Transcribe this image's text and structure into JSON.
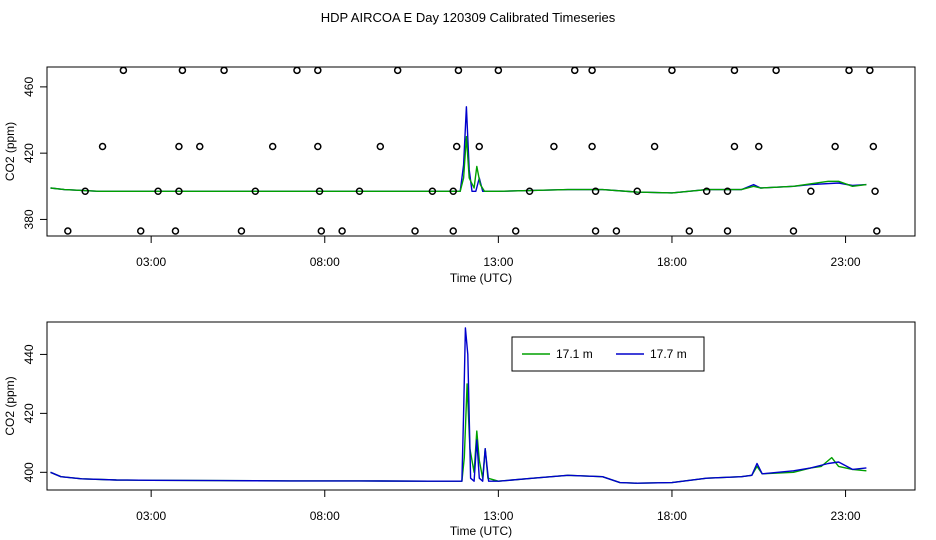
{
  "page_title": "HDP AIRCOA E  Day 120309  Calibrated Timeseries",
  "colors": {
    "series_17_1": "#00a000",
    "series_17_7": "#0000cc",
    "axis": "#000000"
  },
  "chart_data": [
    {
      "type": "scatter+line",
      "title": "",
      "xlabel": "Time (UTC)",
      "ylabel": "CO2 (ppm)",
      "x_unit": "hour UTC",
      "xlim": [
        0.0,
        25.0
      ],
      "ylim": [
        370,
        472
      ],
      "x_ticks": [
        {
          "value": 3,
          "label": "03:00"
        },
        {
          "value": 8,
          "label": "08:00"
        },
        {
          "value": 13,
          "label": "13:00"
        },
        {
          "value": 18,
          "label": "18:00"
        },
        {
          "value": 23,
          "label": "23:00"
        }
      ],
      "y_ticks": [
        {
          "value": 380,
          "label": "380"
        },
        {
          "value": 420,
          "label": "420"
        },
        {
          "value": 460,
          "label": "460"
        }
      ],
      "points_description_source": "calibration markers (open circles)",
      "points": [
        {
          "x": 2.2,
          "y": 470
        },
        {
          "x": 3.9,
          "y": 470
        },
        {
          "x": 5.1,
          "y": 470
        },
        {
          "x": 7.2,
          "y": 470
        },
        {
          "x": 7.8,
          "y": 470
        },
        {
          "x": 10.1,
          "y": 470
        },
        {
          "x": 11.85,
          "y": 470
        },
        {
          "x": 13.0,
          "y": 470
        },
        {
          "x": 15.2,
          "y": 470
        },
        {
          "x": 15.7,
          "y": 470
        },
        {
          "x": 18.0,
          "y": 470
        },
        {
          "x": 19.8,
          "y": 470
        },
        {
          "x": 21.0,
          "y": 470
        },
        {
          "x": 23.1,
          "y": 470
        },
        {
          "x": 23.7,
          "y": 470
        },
        {
          "x": 1.6,
          "y": 424
        },
        {
          "x": 3.8,
          "y": 424
        },
        {
          "x": 4.4,
          "y": 424
        },
        {
          "x": 6.5,
          "y": 424
        },
        {
          "x": 7.8,
          "y": 424
        },
        {
          "x": 9.6,
          "y": 424
        },
        {
          "x": 11.8,
          "y": 424
        },
        {
          "x": 12.45,
          "y": 424
        },
        {
          "x": 14.6,
          "y": 424
        },
        {
          "x": 15.7,
          "y": 424
        },
        {
          "x": 17.5,
          "y": 424
        },
        {
          "x": 19.8,
          "y": 424
        },
        {
          "x": 20.5,
          "y": 424
        },
        {
          "x": 22.7,
          "y": 424
        },
        {
          "x": 23.8,
          "y": 424
        },
        {
          "x": 1.1,
          "y": 397
        },
        {
          "x": 3.2,
          "y": 397
        },
        {
          "x": 3.8,
          "y": 397
        },
        {
          "x": 6.0,
          "y": 397
        },
        {
          "x": 7.85,
          "y": 397
        },
        {
          "x": 9.0,
          "y": 397
        },
        {
          "x": 11.1,
          "y": 397
        },
        {
          "x": 11.7,
          "y": 397
        },
        {
          "x": 13.9,
          "y": 397
        },
        {
          "x": 15.8,
          "y": 397
        },
        {
          "x": 17.0,
          "y": 397
        },
        {
          "x": 19.0,
          "y": 397
        },
        {
          "x": 19.6,
          "y": 397
        },
        {
          "x": 22.0,
          "y": 397
        },
        {
          "x": 23.85,
          "y": 397
        },
        {
          "x": 0.6,
          "y": 373
        },
        {
          "x": 2.7,
          "y": 373
        },
        {
          "x": 3.7,
          "y": 373
        },
        {
          "x": 5.6,
          "y": 373
        },
        {
          "x": 7.9,
          "y": 373
        },
        {
          "x": 8.5,
          "y": 373
        },
        {
          "x": 10.6,
          "y": 373
        },
        {
          "x": 11.7,
          "y": 373
        },
        {
          "x": 13.5,
          "y": 373
        },
        {
          "x": 15.8,
          "y": 373
        },
        {
          "x": 16.4,
          "y": 373
        },
        {
          "x": 18.5,
          "y": 373
        },
        {
          "x": 19.6,
          "y": 373
        },
        {
          "x": 21.5,
          "y": 373
        },
        {
          "x": 23.9,
          "y": 373
        }
      ],
      "series": [
        {
          "color": "#0000cc",
          "values": [
            [
              0.1,
              399
            ],
            [
              0.5,
              398
            ],
            [
              1.5,
              397
            ],
            [
              3,
              397
            ],
            [
              6,
              397
            ],
            [
              9,
              397
            ],
            [
              11,
              397
            ],
            [
              11.9,
              397
            ],
            [
              12.0,
              413
            ],
            [
              12.08,
              448
            ],
            [
              12.16,
              410
            ],
            [
              12.24,
              397
            ],
            [
              12.35,
              397
            ],
            [
              12.45,
              405
            ],
            [
              12.55,
              397
            ],
            [
              13,
              397
            ],
            [
              14,
              397.5
            ],
            [
              15,
              398
            ],
            [
              16,
              398
            ],
            [
              17,
              396.5
            ],
            [
              18,
              396
            ],
            [
              19,
              398
            ],
            [
              20,
              398
            ],
            [
              20.35,
              401
            ],
            [
              20.55,
              399
            ],
            [
              21.5,
              400
            ],
            [
              22,
              401
            ],
            [
              22.8,
              402
            ],
            [
              23.2,
              400.5
            ],
            [
              23.6,
              401
            ]
          ]
        },
        {
          "color": "#00a000",
          "values": [
            [
              0.1,
              399
            ],
            [
              0.5,
              398
            ],
            [
              1.5,
              397
            ],
            [
              3,
              397
            ],
            [
              6,
              397
            ],
            [
              9,
              397
            ],
            [
              11,
              397
            ],
            [
              11.9,
              397
            ],
            [
              12.0,
              405
            ],
            [
              12.08,
              430
            ],
            [
              12.16,
              405
            ],
            [
              12.3,
              399
            ],
            [
              12.38,
              412
            ],
            [
              12.48,
              401
            ],
            [
              12.6,
              397
            ],
            [
              13,
              397
            ],
            [
              14,
              397.5
            ],
            [
              15,
              398
            ],
            [
              16,
              398
            ],
            [
              17,
              396.5
            ],
            [
              18,
              396
            ],
            [
              19,
              398
            ],
            [
              20,
              398
            ],
            [
              20.35,
              400
            ],
            [
              20.55,
              399
            ],
            [
              21.5,
              400
            ],
            [
              22,
              401.5
            ],
            [
              22.5,
              403
            ],
            [
              22.8,
              403
            ],
            [
              23.2,
              400
            ],
            [
              23.6,
              401
            ]
          ]
        }
      ]
    },
    {
      "type": "line",
      "title": "",
      "xlabel": "Time (UTC)",
      "ylabel": "CO2 (ppm)",
      "x_unit": "hour UTC",
      "xlim": [
        0.0,
        25.0
      ],
      "ylim": [
        394,
        451
      ],
      "x_ticks": [
        {
          "value": 3,
          "label": "03:00"
        },
        {
          "value": 8,
          "label": "08:00"
        },
        {
          "value": 13,
          "label": "13:00"
        },
        {
          "value": 18,
          "label": "18:00"
        },
        {
          "value": 23,
          "label": "23:00"
        }
      ],
      "y_ticks": [
        {
          "value": 400,
          "label": "400"
        },
        {
          "value": 420,
          "label": "420"
        },
        {
          "value": 440,
          "label": "440"
        }
      ],
      "legend": {
        "placement": "top-right",
        "entries": [
          {
            "label": "17.1 m",
            "color": "#00a000"
          },
          {
            "label": "17.7 m",
            "color": "#0000cc"
          }
        ]
      },
      "series": [
        {
          "name": "17.1 m",
          "color": "#00a000",
          "values": [
            [
              0.1,
              400
            ],
            [
              0.4,
              398.5
            ],
            [
              1,
              397.8
            ],
            [
              2,
              397.4
            ],
            [
              3,
              397.3
            ],
            [
              5,
              397.2
            ],
            [
              7,
              397.1
            ],
            [
              9,
              397.1
            ],
            [
              11,
              397.0
            ],
            [
              11.95,
              397.0
            ],
            [
              12.02,
              405
            ],
            [
              12.1,
              430
            ],
            [
              12.18,
              408
            ],
            [
              12.3,
              400
            ],
            [
              12.38,
              414
            ],
            [
              12.45,
              404
            ],
            [
              12.55,
              398
            ],
            [
              12.62,
              408
            ],
            [
              12.7,
              398
            ],
            [
              13,
              397
            ],
            [
              14,
              398
            ],
            [
              15,
              399
            ],
            [
              16,
              398.5
            ],
            [
              16.5,
              396.5
            ],
            [
              17,
              396.3
            ],
            [
              18,
              396.5
            ],
            [
              19,
              398
            ],
            [
              20,
              398.5
            ],
            [
              20.3,
              399
            ],
            [
              20.45,
              402
            ],
            [
              20.6,
              399.5
            ],
            [
              21.5,
              400
            ],
            [
              22,
              401.5
            ],
            [
              22.3,
              402
            ],
            [
              22.6,
              405
            ],
            [
              22.8,
              402
            ],
            [
              23.2,
              401
            ],
            [
              23.6,
              400.5
            ]
          ]
        },
        {
          "name": "17.7 m",
          "color": "#0000cc",
          "values": [
            [
              0.1,
              400
            ],
            [
              0.4,
              398.5
            ],
            [
              1,
              397.8
            ],
            [
              2,
              397.4
            ],
            [
              3,
              397.3
            ],
            [
              5,
              397.2
            ],
            [
              7,
              397.1
            ],
            [
              9,
              397.1
            ],
            [
              11,
              397.0
            ],
            [
              11.95,
              397.0
            ],
            [
              12.0,
              420
            ],
            [
              12.05,
              449
            ],
            [
              12.12,
              440
            ],
            [
              12.2,
              398
            ],
            [
              12.3,
              397
            ],
            [
              12.38,
              411
            ],
            [
              12.45,
              398
            ],
            [
              12.55,
              397
            ],
            [
              12.62,
              408
            ],
            [
              12.72,
              397
            ],
            [
              13,
              397
            ],
            [
              14,
              398
            ],
            [
              15,
              399
            ],
            [
              16,
              398.5
            ],
            [
              16.5,
              396.5
            ],
            [
              17,
              396.3
            ],
            [
              18,
              396.5
            ],
            [
              19,
              398
            ],
            [
              20,
              398.5
            ],
            [
              20.3,
              399
            ],
            [
              20.45,
              403
            ],
            [
              20.6,
              399.5
            ],
            [
              21.5,
              400.5
            ],
            [
              22,
              401.5
            ],
            [
              22.5,
              403
            ],
            [
              22.8,
              403.5
            ],
            [
              23.2,
              401
            ],
            [
              23.6,
              401.5
            ]
          ]
        }
      ]
    }
  ]
}
